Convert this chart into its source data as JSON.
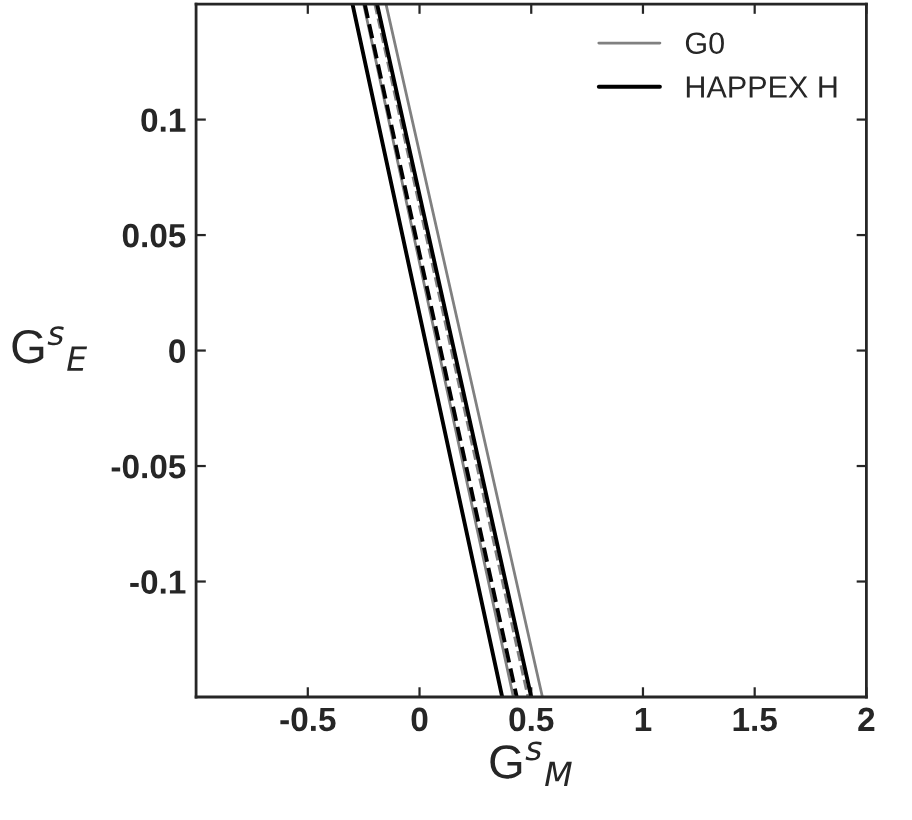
{
  "chart_data": {
    "type": "line",
    "xlabel": "G$^{s}$$_{M}$",
    "ylabel": "G$^{s}$$_{E}$",
    "xlim": [
      -1,
      2
    ],
    "ylim": [
      -0.15,
      0.15
    ],
    "xticks": [
      -0.5,
      0,
      0.5,
      1,
      1.5,
      2
    ],
    "yticks": [
      -0.1,
      -0.05,
      0,
      0.05,
      0.1
    ],
    "grid": false,
    "legend": "top right",
    "marker": "none",
    "series": [
      {
        "name": "G0",
        "color": "#808080",
        "line_style": "solid",
        "x": [
          -0.25,
          0.42
        ],
        "values": [
          0.15,
          -0.15
        ]
      },
      {
        "name": "HAPPEX H",
        "color": "#000000",
        "line_style": "solid",
        "x": [
          -0.3,
          0.37
        ],
        "values": [
          0.15,
          -0.15
        ]
      },
      {
        "color": "#808080",
        "line_style": "solid",
        "x": [
          -0.15,
          0.55
        ],
        "values": [
          0.15,
          -0.15
        ]
      },
      {
        "color": "#808080",
        "line_style": "dashed",
        "x": [
          -0.2,
          0.485
        ],
        "values": [
          0.15,
          -0.15
        ]
      },
      {
        "color": "#000000",
        "line_style": "solid",
        "x": [
          -0.19,
          0.5
        ],
        "values": [
          0.15,
          -0.15
        ]
      },
      {
        "color": "#000000",
        "line_style": "dashed",
        "x": [
          -0.245,
          0.435
        ],
        "values": [
          0.15,
          -0.15
        ]
      }
    ]
  }
}
